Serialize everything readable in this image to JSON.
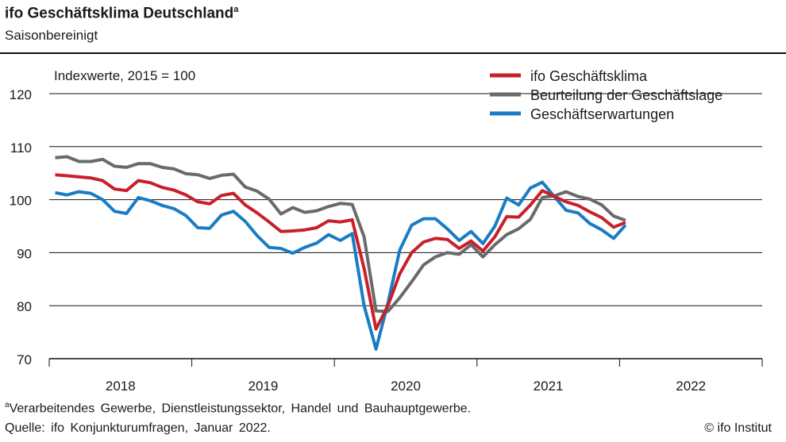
{
  "title": "ifo Geschäftsklima Deutschland",
  "title_note_marker": "a",
  "subtitle": "Saisonbereinigt",
  "footnote_marker": "a",
  "footnote": "Verarbeitendes Gewerbe, Dienstleistungssektor, Handel und Bauhauptgewerbe.",
  "source": "Quelle: ifo Konjunkturumfragen, Januar 2022.",
  "copyright": "© ifo Institut",
  "chart_data": {
    "type": "line",
    "annotation": "Indexwerte, 2015 = 100",
    "xlabel": "",
    "ylabel": "",
    "ylim": [
      70,
      120
    ],
    "yticks": [
      "70",
      "80",
      "90",
      "100",
      "110",
      "120"
    ],
    "xticks": [
      "2018",
      "2019",
      "2020",
      "2021",
      "2022"
    ],
    "x_range": [
      "2018-01",
      "2022-12"
    ],
    "x_start": "2018-01",
    "x_frequency": "monthly",
    "grid": true,
    "legend_position": "top-right",
    "series": [
      {
        "name": "ifo Geschäftsklima",
        "color": "#c8202a",
        "values": [
          104.7,
          104.5,
          104.3,
          104.1,
          103.6,
          102.0,
          101.7,
          103.6,
          103.2,
          102.3,
          101.8,
          100.9,
          99.6,
          99.2,
          100.8,
          101.2,
          99.0,
          97.5,
          95.8,
          94.0,
          94.1,
          94.3,
          94.7,
          96.0,
          95.8,
          96.2,
          87.0,
          75.6,
          80.0,
          86.0,
          90.0,
          92.0,
          92.7,
          92.5,
          90.8,
          92.2,
          90.3,
          93.0,
          96.8,
          96.7,
          99.0,
          101.7,
          100.6,
          99.6,
          98.9,
          97.7,
          96.6,
          94.8,
          95.7
        ]
      },
      {
        "name": "Beurteilung der Geschäftslage",
        "color": "#6a6a6a",
        "values": [
          107.9,
          108.1,
          107.2,
          107.2,
          107.6,
          106.3,
          106.1,
          106.8,
          106.8,
          106.1,
          105.8,
          104.9,
          104.7,
          104.0,
          104.6,
          104.8,
          102.4,
          101.6,
          100.1,
          97.3,
          98.5,
          97.6,
          97.9,
          98.7,
          99.3,
          99.1,
          93.0,
          79.0,
          78.9,
          81.5,
          84.5,
          87.7,
          89.2,
          90.0,
          89.7,
          91.5,
          89.2,
          91.5,
          93.4,
          94.5,
          96.3,
          100.4,
          100.7,
          101.5,
          100.6,
          100.1,
          99.0,
          96.9,
          96.1
        ]
      },
      {
        "name": "Geschäftserwartungen",
        "color": "#1a7cc4",
        "values": [
          101.3,
          100.9,
          101.5,
          101.2,
          100.0,
          97.8,
          97.4,
          100.4,
          99.8,
          98.9,
          98.3,
          97.0,
          94.7,
          94.6,
          97.1,
          97.8,
          95.9,
          93.2,
          91.0,
          90.8,
          89.9,
          91.0,
          91.8,
          93.4,
          92.3,
          93.6,
          80.0,
          71.8,
          80.5,
          90.5,
          95.2,
          96.4,
          96.4,
          94.5,
          92.3,
          94.0,
          91.7,
          95.0,
          100.3,
          99.0,
          102.2,
          103.3,
          100.6,
          98.0,
          97.5,
          95.5,
          94.3,
          92.7,
          95.2
        ]
      }
    ]
  }
}
